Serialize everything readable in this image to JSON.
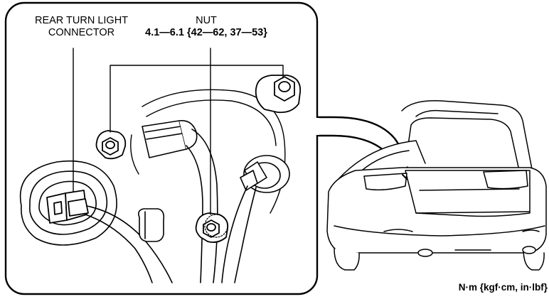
{
  "labels": {
    "connector_line1": "REAR TURN LIGHT",
    "connector_line2": "CONNECTOR",
    "nut_title": "NUT",
    "nut_torque": "4.1—6.1 {42—62, 37—53}",
    "units": "N·m {kgf·cm, in·lbf}"
  }
}
